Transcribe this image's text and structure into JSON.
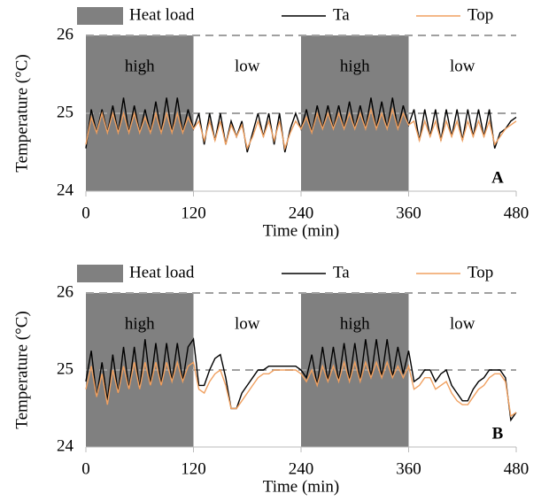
{
  "chart_data": [
    {
      "type": "line",
      "panel_label": "A",
      "xlabel": "Time (min)",
      "ylabel": "Temperature (°C)",
      "xlim": [
        0,
        480
      ],
      "xticks": [
        0,
        120,
        240,
        360,
        480
      ],
      "ylim": [
        24,
        26
      ],
      "yticks": [
        24,
        25,
        26
      ],
      "grid": "dashed",
      "heat_load": {
        "name": "Heat load",
        "color": "#808080"
      },
      "periods": [
        {
          "start": 0,
          "end": 120,
          "label": "high",
          "shaded": true
        },
        {
          "start": 120,
          "end": 240,
          "label": "low",
          "shaded": false
        },
        {
          "start": 240,
          "end": 360,
          "label": "high",
          "shaded": true
        },
        {
          "start": 360,
          "end": 480,
          "label": "low",
          "shaded": false
        }
      ],
      "x": [
        0,
        6,
        12,
        18,
        24,
        30,
        36,
        42,
        48,
        54,
        60,
        66,
        72,
        78,
        84,
        90,
        96,
        102,
        108,
        114,
        120,
        126,
        132,
        138,
        144,
        150,
        156,
        162,
        168,
        174,
        180,
        186,
        192,
        198,
        204,
        210,
        216,
        222,
        228,
        234,
        240,
        246,
        252,
        258,
        264,
        270,
        276,
        282,
        288,
        294,
        300,
        306,
        312,
        318,
        324,
        330,
        336,
        342,
        348,
        354,
        360,
        366,
        372,
        378,
        384,
        390,
        396,
        402,
        408,
        414,
        420,
        426,
        432,
        438,
        444,
        450,
        456,
        462,
        468,
        474,
        480
      ],
      "series": [
        {
          "name": "Ta",
          "color": "#000000",
          "values": [
            24.55,
            25.05,
            24.75,
            25.05,
            24.75,
            25.1,
            24.75,
            25.2,
            24.75,
            25.1,
            24.75,
            25.05,
            24.75,
            25.15,
            24.75,
            25.2,
            24.75,
            25.2,
            24.75,
            25.05,
            24.8,
            25.0,
            24.6,
            25.0,
            24.65,
            25.0,
            24.6,
            24.9,
            24.7,
            24.9,
            24.5,
            24.75,
            25.0,
            24.7,
            25.0,
            24.6,
            25.0,
            24.5,
            24.8,
            25.0,
            24.8,
            25.05,
            24.75,
            25.1,
            24.8,
            25.1,
            24.8,
            25.1,
            24.8,
            25.15,
            24.8,
            25.1,
            24.8,
            25.2,
            24.8,
            25.15,
            24.8,
            25.2,
            24.8,
            25.1,
            24.85,
            25.05,
            24.65,
            25.05,
            24.7,
            25.05,
            24.65,
            25.05,
            24.7,
            25.05,
            24.65,
            25.05,
            24.7,
            25.05,
            24.7,
            25.05,
            24.55,
            24.75,
            24.8,
            24.9,
            24.95
          ]
        },
        {
          "name": "Top",
          "color": "#f0a060",
          "values": [
            24.6,
            24.95,
            24.75,
            25.0,
            24.75,
            25.0,
            24.75,
            25.0,
            24.75,
            25.0,
            24.75,
            24.95,
            24.75,
            25.0,
            24.75,
            25.0,
            24.75,
            25.0,
            24.75,
            24.95,
            24.8,
            24.9,
            24.65,
            24.9,
            24.65,
            24.9,
            24.6,
            24.85,
            24.7,
            24.85,
            24.55,
            24.7,
            24.9,
            24.7,
            24.9,
            24.65,
            24.9,
            24.55,
            24.75,
            24.9,
            24.8,
            24.95,
            24.75,
            25.0,
            24.8,
            25.0,
            24.8,
            25.0,
            24.8,
            25.0,
            24.8,
            25.0,
            24.8,
            25.05,
            24.8,
            25.0,
            24.8,
            25.05,
            24.8,
            25.0,
            24.85,
            24.9,
            24.65,
            24.9,
            24.7,
            24.9,
            24.65,
            24.9,
            24.7,
            24.9,
            24.65,
            24.9,
            24.7,
            24.9,
            24.7,
            24.9,
            24.6,
            24.7,
            24.8,
            24.85,
            24.9
          ]
        }
      ]
    },
    {
      "type": "line",
      "panel_label": "B",
      "xlabel": "Time (min)",
      "ylabel": "Temperature (°C)",
      "xlim": [
        0,
        480
      ],
      "xticks": [
        0,
        120,
        240,
        360,
        480
      ],
      "ylim": [
        24,
        26
      ],
      "yticks": [
        24,
        25,
        26
      ],
      "grid": "dashed",
      "heat_load": {
        "name": "Heat load",
        "color": "#808080"
      },
      "periods": [
        {
          "start": 0,
          "end": 120,
          "label": "high",
          "shaded": true
        },
        {
          "start": 120,
          "end": 240,
          "label": "low",
          "shaded": false
        },
        {
          "start": 240,
          "end": 360,
          "label": "high",
          "shaded": true
        },
        {
          "start": 360,
          "end": 480,
          "label": "low",
          "shaded": false
        }
      ],
      "x": [
        0,
        6,
        12,
        18,
        24,
        30,
        36,
        42,
        48,
        54,
        60,
        66,
        72,
        78,
        84,
        90,
        96,
        102,
        108,
        114,
        120,
        126,
        132,
        138,
        144,
        150,
        156,
        162,
        168,
        174,
        180,
        186,
        192,
        198,
        204,
        210,
        216,
        222,
        228,
        234,
        240,
        246,
        252,
        258,
        264,
        270,
        276,
        282,
        288,
        294,
        300,
        306,
        312,
        318,
        324,
        330,
        336,
        342,
        348,
        354,
        360,
        366,
        372,
        378,
        384,
        390,
        396,
        402,
        408,
        414,
        420,
        426,
        432,
        438,
        444,
        450,
        456,
        462,
        468,
        474,
        480
      ],
      "series": [
        {
          "name": "Ta",
          "color": "#000000",
          "values": [
            24.85,
            25.25,
            24.65,
            25.1,
            24.6,
            25.2,
            24.7,
            25.3,
            24.75,
            25.3,
            24.75,
            25.4,
            24.8,
            25.35,
            24.8,
            25.35,
            24.85,
            25.35,
            24.85,
            25.3,
            25.4,
            24.8,
            24.8,
            25.0,
            25.15,
            25.2,
            24.9,
            24.5,
            24.5,
            24.7,
            24.8,
            24.9,
            25.0,
            25.0,
            25.05,
            25.05,
            25.05,
            25.05,
            25.05,
            25.05,
            25.0,
            24.9,
            25.2,
            24.8,
            25.3,
            24.85,
            25.3,
            24.85,
            25.35,
            24.85,
            25.35,
            24.85,
            25.4,
            24.9,
            25.4,
            24.9,
            25.4,
            24.9,
            25.3,
            24.95,
            25.25,
            24.85,
            24.9,
            25.0,
            25.0,
            24.85,
            24.95,
            25.0,
            24.8,
            24.7,
            24.6,
            24.6,
            24.75,
            24.85,
            24.9,
            25.0,
            25.0,
            25.0,
            24.9,
            24.35,
            24.45
          ]
        },
        {
          "name": "Top",
          "color": "#f0a060",
          "values": [
            24.75,
            25.05,
            24.65,
            24.95,
            24.55,
            25.0,
            24.7,
            25.05,
            24.75,
            25.1,
            24.75,
            25.1,
            24.8,
            25.1,
            24.8,
            25.1,
            24.85,
            25.1,
            24.85,
            25.05,
            25.1,
            24.75,
            24.7,
            24.85,
            24.95,
            25.0,
            24.8,
            24.5,
            24.5,
            24.6,
            24.7,
            24.8,
            24.9,
            24.95,
            24.95,
            25.0,
            25.0,
            25.0,
            25.0,
            25.0,
            24.95,
            24.85,
            25.0,
            24.8,
            25.05,
            24.85,
            25.05,
            24.85,
            25.1,
            24.85,
            25.1,
            24.85,
            25.1,
            24.9,
            25.1,
            24.9,
            25.1,
            24.9,
            25.05,
            24.9,
            25.05,
            24.75,
            24.8,
            24.9,
            24.9,
            24.75,
            24.8,
            24.85,
            24.7,
            24.6,
            24.55,
            24.55,
            24.65,
            24.75,
            24.8,
            24.9,
            24.95,
            24.95,
            24.85,
            24.4,
            24.45
          ]
        }
      ]
    }
  ]
}
